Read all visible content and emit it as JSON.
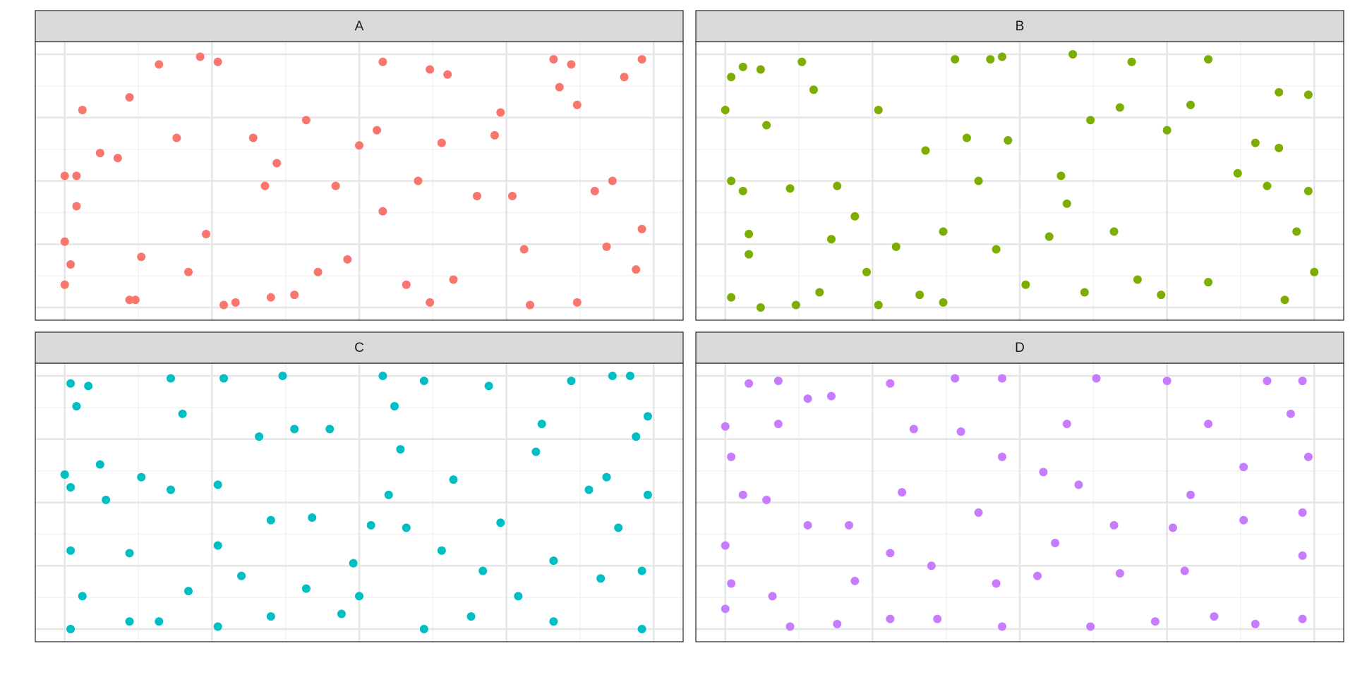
{
  "chart_data": [
    {
      "type": "scatter",
      "title": "A",
      "color": "#F8766D",
      "grid": true,
      "xlim": [
        -0.05,
        1.05
      ],
      "ylim": [
        -0.05,
        1.05
      ],
      "xticks": [
        0,
        0.25,
        0.5,
        0.75,
        1
      ],
      "yticks": [
        0,
        0.25,
        0.5,
        0.75,
        1
      ],
      "xminor": [
        0.125,
        0.375,
        0.625,
        0.875
      ],
      "yminor": [
        0.125,
        0.375,
        0.625,
        0.875
      ],
      "x": [
        0.16,
        0.23,
        0.26,
        0.03,
        0.0,
        0.02,
        0.02,
        0.0,
        0.01,
        0.0,
        0.11,
        0.12,
        0.27,
        0.29,
        0.35,
        0.39,
        0.54,
        0.62,
        0.65,
        0.83,
        0.86,
        0.98,
        0.95,
        0.11,
        0.06,
        0.09,
        0.13,
        0.21,
        0.24,
        0.32,
        0.36,
        0.41,
        0.46,
        0.5,
        0.53,
        0.54,
        0.58,
        0.62,
        0.6,
        0.64,
        0.7,
        0.73,
        0.74,
        0.76,
        0.78,
        0.79,
        0.87,
        0.9,
        0.93,
        0.98,
        0.97,
        0.92,
        0.84,
        0.87,
        0.66,
        0.48,
        0.43,
        0.19,
        0.34
      ],
      "y": [
        0.96,
        0.99,
        0.97,
        0.78,
        0.52,
        0.52,
        0.4,
        0.26,
        0.17,
        0.09,
        0.03,
        0.03,
        0.01,
        0.02,
        0.04,
        0.05,
        0.97,
        0.94,
        0.92,
        0.98,
        0.96,
        0.98,
        0.91,
        0.83,
        0.61,
        0.59,
        0.2,
        0.14,
        0.29,
        0.67,
        0.57,
        0.74,
        0.48,
        0.64,
        0.7,
        0.38,
        0.09,
        0.02,
        0.5,
        0.65,
        0.44,
        0.68,
        0.77,
        0.44,
        0.23,
        0.01,
        0.02,
        0.46,
        0.5,
        0.31,
        0.15,
        0.24,
        0.87,
        0.8,
        0.11,
        0.19,
        0.14,
        0.67,
        0.48
      ]
    },
    {
      "type": "scatter",
      "title": "B",
      "color": "#7CAE00",
      "grid": true,
      "xlim": [
        -0.05,
        1.05
      ],
      "ylim": [
        -0.05,
        1.05
      ],
      "xticks": [
        0,
        0.25,
        0.5,
        0.75,
        1
      ],
      "yticks": [
        0,
        0.25,
        0.5,
        0.75,
        1
      ],
      "xminor": [
        0.125,
        0.375,
        0.625,
        0.875
      ],
      "yminor": [
        0.125,
        0.375,
        0.625,
        0.875
      ],
      "x": [
        0.03,
        0.01,
        0.0,
        0.06,
        0.13,
        0.39,
        0.45,
        0.47,
        0.59,
        0.69,
        0.82,
        0.99,
        0.94,
        0.01,
        0.03,
        0.04,
        0.04,
        0.01,
        0.06,
        0.12,
        0.16,
        0.26,
        0.37,
        0.33,
        0.22,
        0.19,
        0.11,
        0.07,
        0.15,
        0.26,
        0.34,
        0.41,
        0.48,
        0.43,
        0.37,
        0.46,
        0.51,
        0.61,
        0.7,
        0.74,
        0.82,
        0.95,
        1.0,
        0.99,
        0.94,
        0.9,
        0.87,
        0.92,
        0.79,
        0.75,
        0.67,
        0.62,
        0.57,
        0.58,
        0.66,
        0.55,
        0.97,
        0.29,
        0.24,
        0.18
      ],
      "y": [
        0.95,
        0.91,
        0.78,
        0.94,
        0.97,
        0.98,
        0.98,
        0.99,
        1.0,
        0.97,
        0.98,
        0.84,
        0.85,
        0.5,
        0.46,
        0.29,
        0.21,
        0.04,
        0.0,
        0.01,
        0.06,
        0.01,
        0.02,
        0.05,
        0.36,
        0.48,
        0.47,
        0.72,
        0.86,
        0.78,
        0.62,
        0.67,
        0.66,
        0.5,
        0.3,
        0.23,
        0.09,
        0.06,
        0.11,
        0.05,
        0.1,
        0.03,
        0.14,
        0.46,
        0.63,
        0.65,
        0.53,
        0.48,
        0.8,
        0.7,
        0.79,
        0.74,
        0.52,
        0.41,
        0.3,
        0.28,
        0.3,
        0.24,
        0.14,
        0.27
      ]
    },
    {
      "type": "scatter",
      "title": "C",
      "color": "#00BFC4",
      "grid": true,
      "xlim": [
        -0.05,
        1.05
      ],
      "ylim": [
        -0.05,
        1.05
      ],
      "xticks": [
        0,
        0.25,
        0.5,
        0.75,
        1
      ],
      "yticks": [
        0,
        0.25,
        0.5,
        0.75,
        1
      ],
      "xminor": [
        0.125,
        0.375,
        0.625,
        0.875
      ],
      "yminor": [
        0.125,
        0.375,
        0.625,
        0.875
      ],
      "x": [
        0.01,
        0.04,
        0.18,
        0.27,
        0.37,
        0.54,
        0.61,
        0.72,
        0.86,
        0.93,
        0.96,
        0.99,
        0.0,
        0.01,
        0.01,
        0.01,
        0.03,
        0.11,
        0.16,
        0.26,
        0.35,
        0.47,
        0.61,
        0.69,
        0.83,
        0.98,
        0.98,
        0.99,
        0.97,
        0.92,
        0.89,
        0.8,
        0.74,
        0.64,
        0.55,
        0.52,
        0.49,
        0.41,
        0.35,
        0.33,
        0.26,
        0.18,
        0.13,
        0.06,
        0.11,
        0.21,
        0.3,
        0.39,
        0.45,
        0.57,
        0.66,
        0.83,
        0.91,
        0.94,
        0.77,
        0.71,
        0.5,
        0.26,
        0.02,
        0.2,
        0.56,
        0.81,
        0.42,
        0.58,
        0.07
      ],
      "y": [
        0.97,
        0.96,
        0.99,
        0.99,
        1.0,
        1.0,
        0.98,
        0.96,
        0.98,
        1.0,
        1.0,
        0.84,
        0.61,
        0.56,
        0.31,
        0.0,
        0.13,
        0.03,
        0.03,
        0.01,
        0.05,
        0.06,
        0.0,
        0.05,
        0.03,
        0.0,
        0.23,
        0.53,
        0.76,
        0.6,
        0.55,
        0.7,
        0.42,
        0.31,
        0.53,
        0.41,
        0.26,
        0.16,
        0.43,
        0.76,
        0.57,
        0.55,
        0.6,
        0.65,
        0.3,
        0.15,
        0.21,
        0.79,
        0.79,
        0.71,
        0.59,
        0.27,
        0.2,
        0.4,
        0.13,
        0.23,
        0.13,
        0.33,
        0.88,
        0.85,
        0.88,
        0.81,
        0.44,
        0.4,
        0.51
      ]
    },
    {
      "type": "scatter",
      "title": "D",
      "color": "#C77CFF",
      "grid": true,
      "xlim": [
        -0.05,
        1.05
      ],
      "ylim": [
        -0.05,
        1.05
      ],
      "xticks": [
        0,
        0.25,
        0.5,
        0.75,
        1
      ],
      "yticks": [
        0,
        0.25,
        0.5,
        0.75,
        1
      ],
      "xminor": [
        0.125,
        0.375,
        0.625,
        0.875
      ],
      "yminor": [
        0.125,
        0.375,
        0.625,
        0.875
      ],
      "x": [
        0.04,
        0.09,
        0.0,
        0.01,
        0.03,
        0.0,
        0.01,
        0.0,
        0.11,
        0.19,
        0.28,
        0.36,
        0.47,
        0.62,
        0.73,
        0.83,
        0.9,
        0.98,
        0.98,
        0.99,
        0.98,
        0.92,
        0.75,
        0.63,
        0.47,
        0.39,
        0.28,
        0.14,
        0.18,
        0.09,
        0.07,
        0.14,
        0.21,
        0.3,
        0.35,
        0.43,
        0.47,
        0.54,
        0.6,
        0.66,
        0.76,
        0.79,
        0.88,
        0.96,
        0.88,
        0.78,
        0.67,
        0.53,
        0.46,
        0.28,
        0.22,
        0.08,
        0.56,
        0.4,
        0.58,
        0.82,
        0.32,
        0.98
      ],
      "y": [
        0.97,
        0.98,
        0.8,
        0.68,
        0.53,
        0.33,
        0.18,
        0.08,
        0.01,
        0.02,
        0.04,
        0.04,
        0.01,
        0.01,
        0.03,
        0.05,
        0.02,
        0.04,
        0.29,
        0.68,
        0.98,
        0.98,
        0.98,
        0.99,
        0.99,
        0.99,
        0.97,
        0.91,
        0.92,
        0.81,
        0.51,
        0.41,
        0.41,
        0.54,
        0.25,
        0.46,
        0.68,
        0.62,
        0.57,
        0.41,
        0.4,
        0.53,
        0.64,
        0.85,
        0.43,
        0.23,
        0.22,
        0.21,
        0.18,
        0.3,
        0.19,
        0.13,
        0.34,
        0.78,
        0.81,
        0.81,
        0.79,
        0.46
      ]
    }
  ]
}
